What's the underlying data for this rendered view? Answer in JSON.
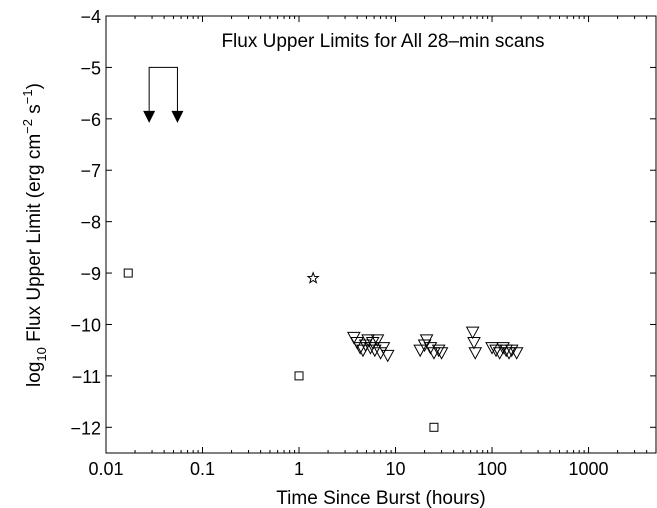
{
  "chart_data": {
    "type": "scatter",
    "title": "Flux Upper Limits for All 28–min scans",
    "xlabel": "Time Since Burst (hours)",
    "ylabel": {
      "log_prefix": "log",
      "log_sub": "10",
      "main": " Flux Upper Limit (erg cm",
      "exp1": "−2",
      "mid": " s",
      "exp2": "−1",
      "close": ")"
    },
    "xscale": "log",
    "xlim": [
      0.01,
      5000
    ],
    "ylim": [
      -12.5,
      -4
    ],
    "x_ticks": [
      {
        "value": 0.01,
        "label": "0.01"
      },
      {
        "value": 0.1,
        "label": "0.1"
      },
      {
        "value": 1,
        "label": "1"
      },
      {
        "value": 10,
        "label": "10"
      },
      {
        "value": 100,
        "label": "100"
      },
      {
        "value": 1000,
        "label": "1000"
      }
    ],
    "y_ticks": [
      {
        "value": -4,
        "label": "−4"
      },
      {
        "value": -5,
        "label": "−5"
      },
      {
        "value": -6,
        "label": "−6"
      },
      {
        "value": -7,
        "label": "−7"
      },
      {
        "value": -8,
        "label": "−8"
      },
      {
        "value": -9,
        "label": "−9"
      },
      {
        "value": -10,
        "label": "−10"
      },
      {
        "value": -11,
        "label": "−11"
      },
      {
        "value": -12,
        "label": "−12"
      }
    ],
    "grid": false,
    "series": [
      {
        "marker": "square",
        "points": [
          [
            0.017,
            -9.0
          ],
          [
            1.0,
            -11.0
          ],
          [
            25,
            -12.0
          ]
        ]
      },
      {
        "marker": "star",
        "points": [
          [
            1.4,
            -9.1
          ]
        ]
      },
      {
        "marker": "triangle-down",
        "points": [
          [
            3.7,
            -10.25
          ],
          [
            4.0,
            -10.35
          ],
          [
            4.3,
            -10.45
          ],
          [
            4.6,
            -10.5
          ],
          [
            4.9,
            -10.4
          ],
          [
            5.2,
            -10.3
          ],
          [
            5.5,
            -10.45
          ],
          [
            5.8,
            -10.35
          ],
          [
            6.1,
            -10.5
          ],
          [
            6.5,
            -10.3
          ],
          [
            7.0,
            -10.55
          ],
          [
            7.5,
            -10.45
          ],
          [
            8.3,
            -10.6
          ],
          [
            18,
            -10.5
          ],
          [
            20,
            -10.4
          ],
          [
            21,
            -10.3
          ],
          [
            23,
            -10.45
          ],
          [
            25,
            -10.55
          ],
          [
            28,
            -10.5
          ],
          [
            30,
            -10.55
          ],
          [
            63,
            -10.15
          ],
          [
            65,
            -10.35
          ],
          [
            67,
            -10.55
          ],
          [
            100,
            -10.45
          ],
          [
            110,
            -10.5
          ],
          [
            120,
            -10.55
          ],
          [
            130,
            -10.45
          ],
          [
            140,
            -10.5
          ],
          [
            150,
            -10.55
          ],
          [
            160,
            -10.5
          ],
          [
            180,
            -10.55
          ]
        ]
      }
    ],
    "annotation": {
      "type": "bracket-arrows",
      "x": [
        0.028,
        0.055
      ],
      "y_top": -5.0,
      "y_arrow": -6.0
    }
  }
}
